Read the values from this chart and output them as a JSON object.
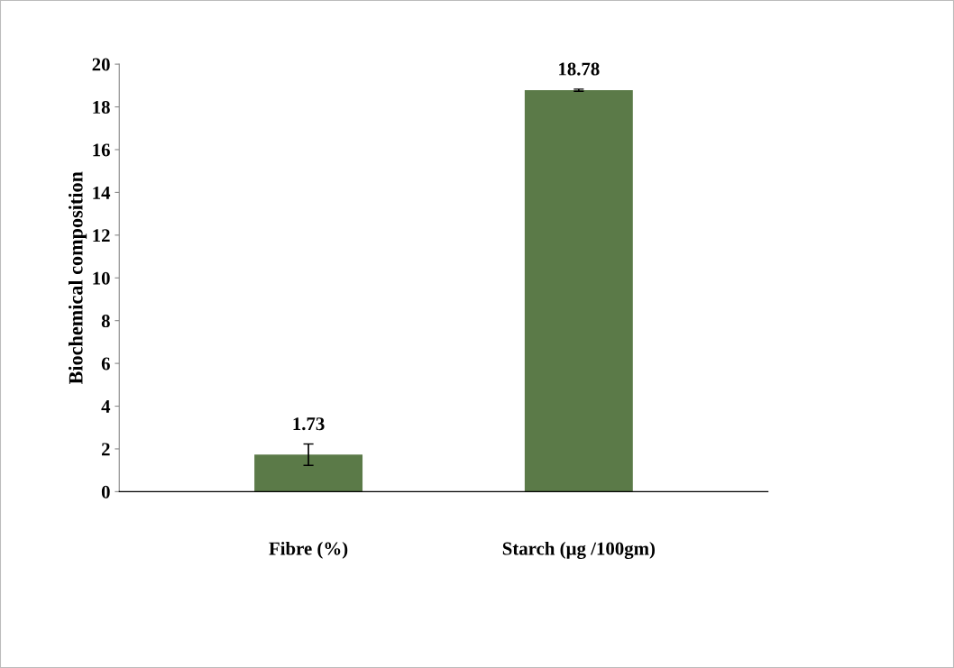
{
  "chart_data": {
    "type": "bar",
    "ylabel": "Biochemical composition",
    "categories": [
      "Fibre (%)",
      "Starch (µg /100gm)"
    ],
    "values": [
      1.73,
      18.78
    ],
    "errors": [
      0.5,
      0.05
    ],
    "color": "#5b7a48",
    "data_labels": true,
    "ylim": [
      0,
      20
    ],
    "yticks": [
      0,
      2,
      4,
      6,
      8,
      10,
      12,
      14,
      16,
      18,
      20
    ],
    "grid": false,
    "legend": false
  }
}
